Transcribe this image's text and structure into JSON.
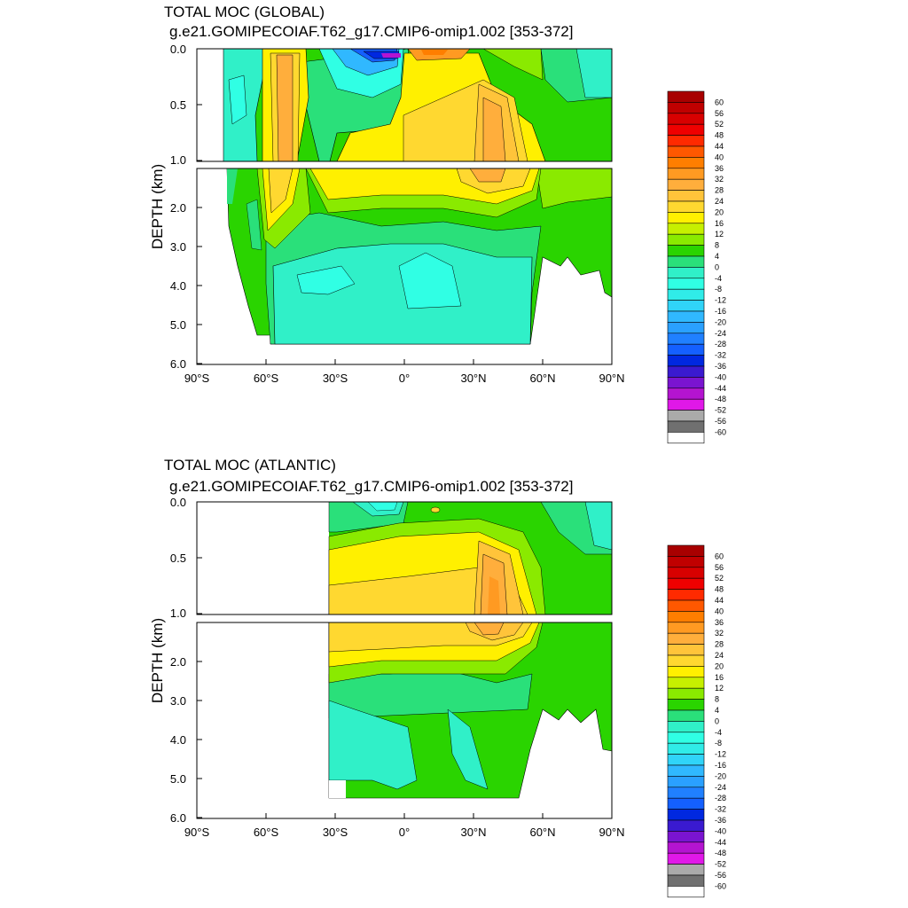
{
  "chart_data": [
    {
      "type": "heatmap",
      "title": "TOTAL MOC (GLOBAL)",
      "subtitle": "g.e21.GOMIPECOIAF.T62_g17.CMIP6-omip1.002 [353-372]",
      "ylabel": "DEPTH (km)",
      "xlim": [
        -90,
        90
      ],
      "ylim": [
        6.0,
        0.0
      ],
      "x_ticks": [
        {
          "value": -90,
          "label": "90°S"
        },
        {
          "value": -60,
          "label": "60°S"
        },
        {
          "value": -30,
          "label": "30°S"
        },
        {
          "value": 0,
          "label": "0°"
        },
        {
          "value": 30,
          "label": "30°N"
        },
        {
          "value": 60,
          "label": "60°N"
        },
        {
          "value": 90,
          "label": "90°N"
        }
      ],
      "y_ticks_upper": [
        "0.0",
        "0.5",
        "1.0"
      ],
      "y_ticks_lower": [
        "2.0",
        "3.0",
        "4.0",
        "5.0",
        "6.0"
      ],
      "panel_split_depth_km": 1.0,
      "domain_south_lat": -78,
      "domain_north_lat": 90,
      "features": [
        {
          "name": "southern-ocean-cell",
          "lat": -50,
          "depth": 0.6,
          "value": 24
        },
        {
          "name": "tropical-surface-negative",
          "lat": -5,
          "depth": 0.05,
          "value": -40
        },
        {
          "name": "tropical-surface-positive",
          "lat": 12,
          "depth": 0.05,
          "value": 24
        },
        {
          "name": "atlantic-overturning-max",
          "lat": 37,
          "depth": 0.8,
          "value": 28
        },
        {
          "name": "abyssal-cell",
          "lat": -5,
          "depth": 4.0,
          "value": -8
        }
      ]
    },
    {
      "type": "heatmap",
      "title": "TOTAL MOC (ATLANTIC)",
      "subtitle": "g.e21.GOMIPECOIAF.T62_g17.CMIP6-omip1.002 [353-372]",
      "ylabel": "DEPTH (km)",
      "xlim": [
        -90,
        90
      ],
      "ylim": [
        6.0,
        0.0
      ],
      "x_ticks": [
        {
          "value": -90,
          "label": "90°S"
        },
        {
          "value": -60,
          "label": "60°S"
        },
        {
          "value": -30,
          "label": "30°S"
        },
        {
          "value": 0,
          "label": "0°"
        },
        {
          "value": 30,
          "label": "30°N"
        },
        {
          "value": 60,
          "label": "60°N"
        },
        {
          "value": 90,
          "label": "90°N"
        }
      ],
      "y_ticks_upper": [
        "0.0",
        "0.5",
        "1.0"
      ],
      "y_ticks_lower": [
        "2.0",
        "3.0",
        "4.0",
        "5.0",
        "6.0"
      ],
      "panel_split_depth_km": 1.0,
      "domain_south_lat": -34,
      "domain_north_lat": 90,
      "features": [
        {
          "name": "atlantic-overturning-max",
          "lat": 37,
          "depth": 0.8,
          "value": 28
        },
        {
          "name": "upper-cell",
          "lat": 0,
          "depth": 1.0,
          "value": 16
        },
        {
          "name": "surface-negative",
          "lat": -18,
          "depth": 0.05,
          "value": -4
        },
        {
          "name": "abyssal-cell",
          "lat": -20,
          "depth": 4.2,
          "value": -4
        }
      ]
    }
  ],
  "colorbar": {
    "labels": [
      "60",
      "56",
      "52",
      "48",
      "44",
      "40",
      "36",
      "32",
      "28",
      "24",
      "20",
      "16",
      "12",
      "8",
      "4",
      "0",
      "-4",
      "-8",
      "-12",
      "-16",
      "-20",
      "-24",
      "-28",
      "-32",
      "-36",
      "-40",
      "-44",
      "-48",
      "-52",
      "-56",
      "-60"
    ],
    "colors": [
      "#a80000",
      "#c00000",
      "#d80000",
      "#ef0000",
      "#ff2a00",
      "#ff5800",
      "#ff7e00",
      "#ff9a22",
      "#ffae3c",
      "#ffc43a",
      "#ffd830",
      "#fff000",
      "#c6f000",
      "#8aea00",
      "#2ad400",
      "#2ae07a",
      "#30f0c8",
      "#30ffe4",
      "#30ece8",
      "#30d4f8",
      "#30b8ff",
      "#2aa0ff",
      "#2080ff",
      "#1460ff",
      "#0028e0",
      "#3a1ad0",
      "#7a14d0",
      "#b414d0",
      "#e018e8",
      "#aaaaaa",
      "#707070",
      "#ffffff"
    ]
  }
}
